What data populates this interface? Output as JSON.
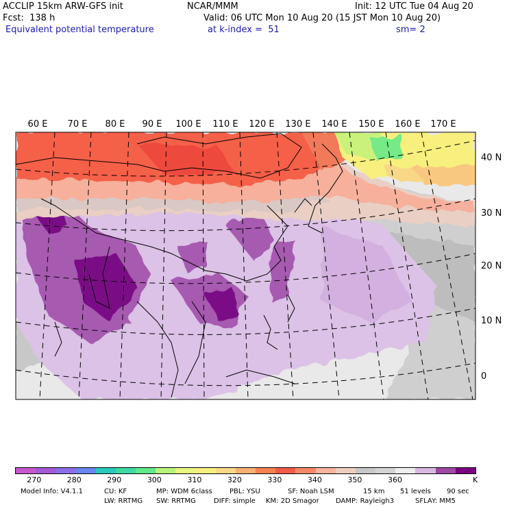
{
  "header": {
    "model": "ACCLIP 15km ARW-GFS init",
    "org": "NCAR/MMM",
    "init": "Init: 12 UTC Tue 04 Aug 20",
    "fcst": "Fcst:  138 h",
    "valid": "Valid: 06 UTC Mon 10 Aug 20 (15 JST Mon 10 Aug 20)",
    "field": "Equivalent potential temperature",
    "level": "at k-index =  51",
    "smooth": "sm= 2"
  },
  "map": {
    "lon_labels": [
      "60 E",
      "70 E",
      "80 E",
      "90 E",
      "100 E",
      "110 E",
      "120 E",
      "130 E",
      "140 E",
      "150 E",
      "160 E",
      "170 E"
    ],
    "lat_labels": [
      "40 N",
      "30 N",
      "20 N",
      "10 N",
      "0"
    ]
  },
  "colorbar": {
    "colors": [
      "#c858d0",
      "#a55ad6",
      "#8a6ee8",
      "#6a86ee",
      "#28c9bd",
      "#3dd9a2",
      "#62e88a",
      "#b8f47a",
      "#e8f57e",
      "#f8f07e",
      "#f8d886",
      "#f8b072",
      "#f7834e",
      "#f25b48",
      "#f58868",
      "#f6b49e",
      "#f1cfc0",
      "#c8c8c8",
      "#d4d4d4",
      "#efefef",
      "#d8b8e0",
      "#9e48a6",
      "#7a0080"
    ],
    "ticks": [
      "270",
      "280",
      "290",
      "300",
      "310",
      "320",
      "330",
      "340",
      "350",
      "360"
    ],
    "unit": "K"
  },
  "footer": {
    "line1": [
      "Model Info: V4.1.1",
      "CU: KF",
      "MP: WDM 6class",
      "PBL: YSU",
      "SF: Noah LSM",
      "15 km",
      "51 levels",
      "90 sec"
    ],
    "line2": [
      "LW: RRTMG",
      "SW: RRTMG",
      "DIFF: simple",
      "KM: 2D Smagor",
      "DAMP: Rayleigh3",
      "SFLAY: MM5"
    ]
  }
}
